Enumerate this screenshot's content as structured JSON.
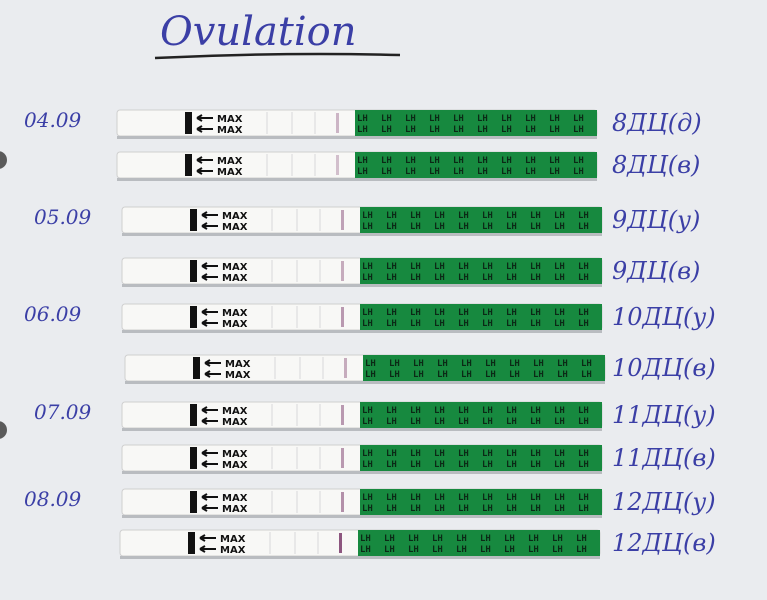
{
  "title": "Ovulation",
  "strip_print": {
    "arrow_label": "MAX",
    "band_print": "LH"
  },
  "days": [
    {
      "date": "04.09",
      "strips": [
        "8ДЦ(д)",
        "8ДЦ(в)"
      ]
    },
    {
      "date": "05.09",
      "strips": [
        "9ДЦ(у)",
        "9ДЦ(в)"
      ]
    },
    {
      "date": "06.09",
      "strips": [
        "10ДЦ(у)",
        "10ДЦ(в)"
      ]
    },
    {
      "date": "07.09",
      "strips": [
        "11ДЦ(у)",
        "11ДЦ(в)"
      ]
    },
    {
      "date": "08.09",
      "strips": [
        "12ДЦ(у)",
        "12ДЦ(в)"
      ]
    }
  ]
}
